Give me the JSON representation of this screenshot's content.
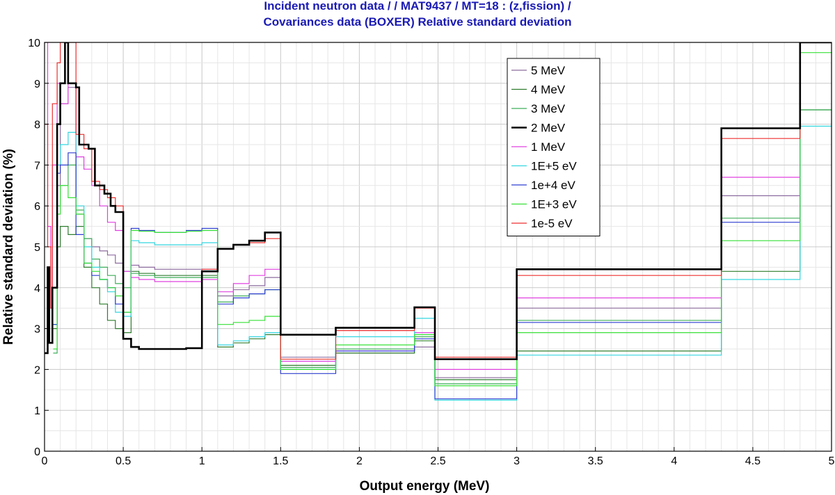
{
  "chart_data": {
    "type": "line",
    "title_line1": "Incident neutron data / / MAT9437 / MT=18 : (z,fission) /",
    "title_line2": "Covariances data (BOXER) Relative standard deviation",
    "xlabel": "Output energy (MeV)",
    "ylabel": "Relative standard deviation (%)",
    "xlim": [
      0,
      5
    ],
    "ylim": [
      0,
      10
    ],
    "x_ticks": [
      "0",
      "0.5",
      "1",
      "1.5",
      "2",
      "2.5",
      "3",
      "3.5",
      "4",
      "4.5",
      "5"
    ],
    "y_ticks": [
      "0",
      "1",
      "2",
      "3",
      "4",
      "5",
      "6",
      "7",
      "8",
      "9",
      "10"
    ],
    "grid": true,
    "legend_position": "top-center-right",
    "series": [
      {
        "name": "5 MeV",
        "color": "#8c6b9e",
        "width": 1.2,
        "points": [
          [
            0.055,
            3.1
          ],
          [
            0.08,
            6.5
          ],
          [
            0.1,
            8.5
          ],
          [
            0.15,
            8.9
          ],
          [
            0.2,
            5.8
          ],
          [
            0.25,
            5.2
          ],
          [
            0.3,
            5.0
          ],
          [
            0.35,
            4.9
          ],
          [
            0.4,
            4.8
          ],
          [
            0.45,
            4.6
          ],
          [
            0.5,
            4.4
          ],
          [
            0.55,
            4.55
          ],
          [
            0.6,
            4.5
          ],
          [
            0.7,
            4.45
          ],
          [
            0.8,
            4.45
          ],
          [
            0.9,
            4.45
          ],
          [
            1.0,
            4.45
          ],
          [
            1.1,
            3.8
          ],
          [
            1.2,
            3.95
          ],
          [
            1.3,
            4.05
          ],
          [
            1.4,
            4.25
          ],
          [
            1.5,
            2.3
          ],
          [
            1.85,
            2.4
          ],
          [
            2.35,
            2.55
          ],
          [
            2.48,
            1.8
          ],
          [
            3.0,
            3.5
          ],
          [
            4.3,
            6.25
          ],
          [
            4.8,
            10.0
          ]
        ]
      },
      {
        "name": "4 MeV",
        "color": "#2e7d2e",
        "width": 1.2,
        "points": [
          [
            0.055,
            3.0
          ],
          [
            0.08,
            5.0
          ],
          [
            0.1,
            5.5
          ],
          [
            0.15,
            5.3
          ],
          [
            0.2,
            5.5
          ],
          [
            0.25,
            4.5
          ],
          [
            0.3,
            4.0
          ],
          [
            0.35,
            3.6
          ],
          [
            0.4,
            3.2
          ],
          [
            0.45,
            3.0
          ],
          [
            0.5,
            2.9
          ],
          [
            0.55,
            4.4
          ],
          [
            0.6,
            4.35
          ],
          [
            0.7,
            4.3
          ],
          [
            0.8,
            4.3
          ],
          [
            0.9,
            4.3
          ],
          [
            1.0,
            4.3
          ],
          [
            1.1,
            2.55
          ],
          [
            1.2,
            2.65
          ],
          [
            1.3,
            2.75
          ],
          [
            1.4,
            2.85
          ],
          [
            1.5,
            2.1
          ],
          [
            1.85,
            2.4
          ],
          [
            2.35,
            2.7
          ],
          [
            2.48,
            1.75
          ],
          [
            3.0,
            2.45
          ],
          [
            4.3,
            4.4
          ],
          [
            4.8,
            8.35
          ]
        ]
      },
      {
        "name": "3 MeV",
        "color": "#3fae5a",
        "width": 1.2,
        "points": [
          [
            0.055,
            2.4
          ],
          [
            0.08,
            6.0
          ],
          [
            0.1,
            6.5
          ],
          [
            0.15,
            7.0
          ],
          [
            0.2,
            5.9
          ],
          [
            0.25,
            5.2
          ],
          [
            0.3,
            4.7
          ],
          [
            0.35,
            4.5
          ],
          [
            0.4,
            4.3
          ],
          [
            0.45,
            4.1
          ],
          [
            0.5,
            4.0
          ],
          [
            0.55,
            4.35
          ],
          [
            0.6,
            4.3
          ],
          [
            0.7,
            4.25
          ],
          [
            0.8,
            4.25
          ],
          [
            0.9,
            4.25
          ],
          [
            1.0,
            4.25
          ],
          [
            1.1,
            3.65
          ],
          [
            1.2,
            3.8
          ],
          [
            1.3,
            3.85
          ],
          [
            1.4,
            3.95
          ],
          [
            1.5,
            2.05
          ],
          [
            1.85,
            2.5
          ],
          [
            2.35,
            2.8
          ],
          [
            2.48,
            1.65
          ],
          [
            3.0,
            3.2
          ],
          [
            4.3,
            5.7
          ],
          [
            4.8,
            8.35
          ]
        ]
      },
      {
        "name": "2 MeV",
        "color": "#000000",
        "width": 2.6,
        "points": [
          [
            0.0,
            2.4
          ],
          [
            0.02,
            4.5
          ],
          [
            0.03,
            2.65
          ],
          [
            0.05,
            4.0
          ],
          [
            0.08,
            8.0
          ],
          [
            0.1,
            9.0
          ],
          [
            0.13,
            10.0
          ],
          [
            0.15,
            9.0
          ],
          [
            0.2,
            8.9
          ],
          [
            0.22,
            7.5
          ],
          [
            0.28,
            7.4
          ],
          [
            0.32,
            6.5
          ],
          [
            0.38,
            6.3
          ],
          [
            0.42,
            6.0
          ],
          [
            0.45,
            5.85
          ],
          [
            0.5,
            2.75
          ],
          [
            0.55,
            2.55
          ],
          [
            0.6,
            2.5
          ],
          [
            0.7,
            2.5
          ],
          [
            0.8,
            2.5
          ],
          [
            0.9,
            2.52
          ],
          [
            1.0,
            4.4
          ],
          [
            1.1,
            4.95
          ],
          [
            1.2,
            5.05
          ],
          [
            1.3,
            5.15
          ],
          [
            1.4,
            5.35
          ],
          [
            1.5,
            2.85
          ],
          [
            1.85,
            3.02
          ],
          [
            2.35,
            3.52
          ],
          [
            2.48,
            2.25
          ],
          [
            3.0,
            4.45
          ],
          [
            4.3,
            7.9
          ],
          [
            4.8,
            10.0
          ]
        ]
      },
      {
        "name": "1 MeV",
        "color": "#e040e0",
        "width": 1.2,
        "points": [
          [
            0.0,
            10.0
          ],
          [
            0.02,
            5.5
          ],
          [
            0.04,
            3.5
          ],
          [
            0.05,
            7.0
          ],
          [
            0.08,
            9.0
          ],
          [
            0.1,
            8.5
          ],
          [
            0.15,
            9.0
          ],
          [
            0.2,
            7.2
          ],
          [
            0.25,
            6.9
          ],
          [
            0.3,
            6.5
          ],
          [
            0.35,
            6.0
          ],
          [
            0.4,
            5.6
          ],
          [
            0.45,
            5.4
          ],
          [
            0.5,
            4.4
          ],
          [
            0.55,
            4.25
          ],
          [
            0.6,
            4.2
          ],
          [
            0.7,
            4.15
          ],
          [
            0.8,
            4.15
          ],
          [
            0.9,
            4.15
          ],
          [
            1.0,
            4.2
          ],
          [
            1.1,
            3.9
          ],
          [
            1.2,
            4.1
          ],
          [
            1.3,
            4.3
          ],
          [
            1.4,
            4.45
          ],
          [
            1.5,
            2.2
          ],
          [
            1.85,
            2.45
          ],
          [
            2.35,
            2.9
          ],
          [
            2.48,
            2.0
          ],
          [
            3.0,
            3.75
          ],
          [
            4.3,
            6.7
          ],
          [
            4.8,
            10.0
          ]
        ]
      },
      {
        "name": "1E+5 eV",
        "color": "#33d6e0",
        "width": 1.2,
        "points": [
          [
            0.055,
            3.1
          ],
          [
            0.08,
            7.0
          ],
          [
            0.1,
            7.5
          ],
          [
            0.15,
            7.8
          ],
          [
            0.2,
            6.0
          ],
          [
            0.25,
            5.0
          ],
          [
            0.3,
            4.5
          ],
          [
            0.35,
            4.2
          ],
          [
            0.4,
            3.9
          ],
          [
            0.45,
            3.4
          ],
          [
            0.5,
            3.3
          ],
          [
            0.55,
            5.15
          ],
          [
            0.6,
            5.1
          ],
          [
            0.7,
            5.05
          ],
          [
            0.8,
            5.05
          ],
          [
            0.9,
            5.05
          ],
          [
            1.0,
            5.1
          ],
          [
            1.1,
            2.6
          ],
          [
            1.2,
            2.7
          ],
          [
            1.3,
            2.8
          ],
          [
            1.4,
            2.9
          ],
          [
            1.5,
            2.0
          ],
          [
            1.85,
            2.8
          ],
          [
            2.35,
            3.25
          ],
          [
            2.48,
            1.25
          ],
          [
            3.0,
            2.35
          ],
          [
            4.3,
            4.2
          ],
          [
            4.8,
            7.95
          ]
        ]
      },
      {
        "name": "1e+4 eV",
        "color": "#2e3fd0",
        "width": 1.2,
        "points": [
          [
            0.055,
            3.1
          ],
          [
            0.08,
            6.8
          ],
          [
            0.1,
            7.0
          ],
          [
            0.15,
            7.3
          ],
          [
            0.2,
            5.3
          ],
          [
            0.25,
            4.6
          ],
          [
            0.3,
            4.3
          ],
          [
            0.35,
            4.2
          ],
          [
            0.4,
            4.0
          ],
          [
            0.45,
            3.6
          ],
          [
            0.5,
            3.4
          ],
          [
            0.55,
            5.45
          ],
          [
            0.6,
            5.4
          ],
          [
            0.7,
            5.35
          ],
          [
            0.8,
            5.35
          ],
          [
            0.9,
            5.4
          ],
          [
            1.0,
            5.45
          ],
          [
            1.1,
            3.6
          ],
          [
            1.2,
            3.75
          ],
          [
            1.3,
            3.85
          ],
          [
            1.4,
            3.95
          ],
          [
            1.5,
            1.9
          ],
          [
            1.85,
            2.45
          ],
          [
            2.35,
            2.75
          ],
          [
            2.48,
            1.28
          ],
          [
            3.0,
            3.15
          ],
          [
            4.3,
            5.6
          ],
          [
            4.8,
            10.0
          ]
        ]
      },
      {
        "name": "1E+3 eV",
        "color": "#36e036",
        "width": 1.2,
        "points": [
          [
            0.055,
            2.5
          ],
          [
            0.08,
            5.8
          ],
          [
            0.1,
            6.5
          ],
          [
            0.15,
            6.2
          ],
          [
            0.2,
            5.8
          ],
          [
            0.25,
            4.6
          ],
          [
            0.3,
            4.4
          ],
          [
            0.35,
            4.2
          ],
          [
            0.4,
            4.0
          ],
          [
            0.45,
            3.8
          ],
          [
            0.5,
            3.4
          ],
          [
            0.55,
            5.4
          ],
          [
            0.6,
            5.38
          ],
          [
            0.7,
            5.35
          ],
          [
            0.8,
            5.35
          ],
          [
            0.9,
            5.38
          ],
          [
            1.0,
            5.4
          ],
          [
            1.1,
            3.1
          ],
          [
            1.2,
            3.15
          ],
          [
            1.3,
            3.2
          ],
          [
            1.4,
            3.3
          ],
          [
            1.5,
            2.0
          ],
          [
            1.85,
            2.6
          ],
          [
            2.35,
            2.85
          ],
          [
            2.48,
            1.6
          ],
          [
            3.0,
            2.9
          ],
          [
            4.3,
            5.15
          ],
          [
            4.8,
            9.75
          ]
        ]
      },
      {
        "name": "1e-5 eV",
        "color": "#ee2e2e",
        "width": 1.2,
        "points": [
          [
            0.0,
            8.0
          ],
          [
            0.02,
            5.0
          ],
          [
            0.04,
            3.5
          ],
          [
            0.05,
            8.5
          ],
          [
            0.08,
            9.5
          ],
          [
            0.1,
            10.0
          ],
          [
            0.15,
            10.0
          ],
          [
            0.2,
            7.75
          ],
          [
            0.25,
            7.4
          ],
          [
            0.3,
            6.6
          ],
          [
            0.35,
            6.4
          ],
          [
            0.4,
            6.2
          ],
          [
            0.45,
            6.0
          ],
          [
            0.5,
            2.75
          ],
          [
            0.55,
            2.55
          ],
          [
            0.6,
            2.5
          ],
          [
            0.7,
            2.5
          ],
          [
            0.8,
            2.5
          ],
          [
            0.9,
            2.52
          ],
          [
            1.0,
            4.45
          ],
          [
            1.1,
            4.95
          ],
          [
            1.2,
            5.05
          ],
          [
            1.3,
            5.1
          ],
          [
            1.4,
            5.2
          ],
          [
            1.5,
            2.25
          ],
          [
            1.85,
            2.95
          ],
          [
            2.35,
            3.5
          ],
          [
            2.48,
            2.3
          ],
          [
            3.0,
            4.3
          ],
          [
            4.3,
            7.65
          ],
          [
            4.8,
            10.0
          ]
        ]
      }
    ]
  }
}
